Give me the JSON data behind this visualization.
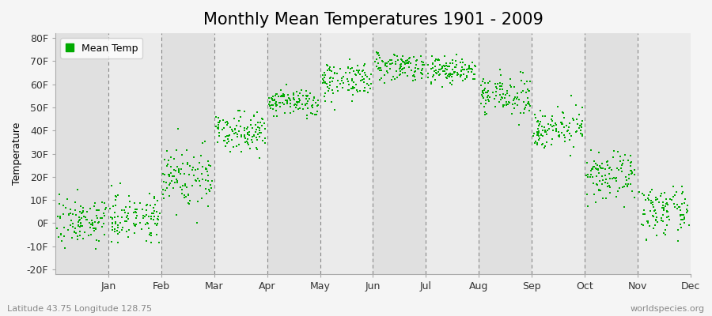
{
  "title": "Monthly Mean Temperatures 1901 - 2009",
  "ylabel": "Temperature",
  "ytick_labels": [
    "80F",
    "70F",
    "60F",
    "50F",
    "40F",
    "30F",
    "20F",
    "10F",
    "0F",
    "-10F",
    "-20F"
  ],
  "ytick_values": [
    80,
    70,
    60,
    50,
    40,
    30,
    20,
    10,
    0,
    -10,
    -20
  ],
  "ylim": [
    -22,
    82
  ],
  "months": [
    "Jan",
    "Feb",
    "Mar",
    "Apr",
    "May",
    "Jun",
    "Jul",
    "Aug",
    "Sep",
    "Oct",
    "Nov",
    "Dec"
  ],
  "month_boundaries": [
    0,
    1,
    2,
    3,
    4,
    5,
    6,
    7,
    8,
    9,
    10,
    11,
    12
  ],
  "dot_color": "#00aa00",
  "dot_size": 3,
  "bg_color": "#f5f5f5",
  "band_even": "#ebebeb",
  "band_odd": "#e0e0e0",
  "grid_color": "#888888",
  "legend_label": "Mean Temp",
  "footer_left": "Latitude 43.75 Longitude 128.75",
  "footer_right": "worldspecies.org",
  "title_fontsize": 15,
  "axis_label_fontsize": 9,
  "tick_fontsize": 9,
  "footer_fontsize": 8,
  "monthly_mean_temps": [
    1,
    3,
    20,
    40,
    52,
    62,
    68,
    66,
    55,
    41,
    20,
    5
  ],
  "monthly_std": [
    5,
    5,
    7,
    4,
    3,
    4,
    3,
    3,
    4,
    4,
    5,
    5
  ],
  "n_years": 109
}
